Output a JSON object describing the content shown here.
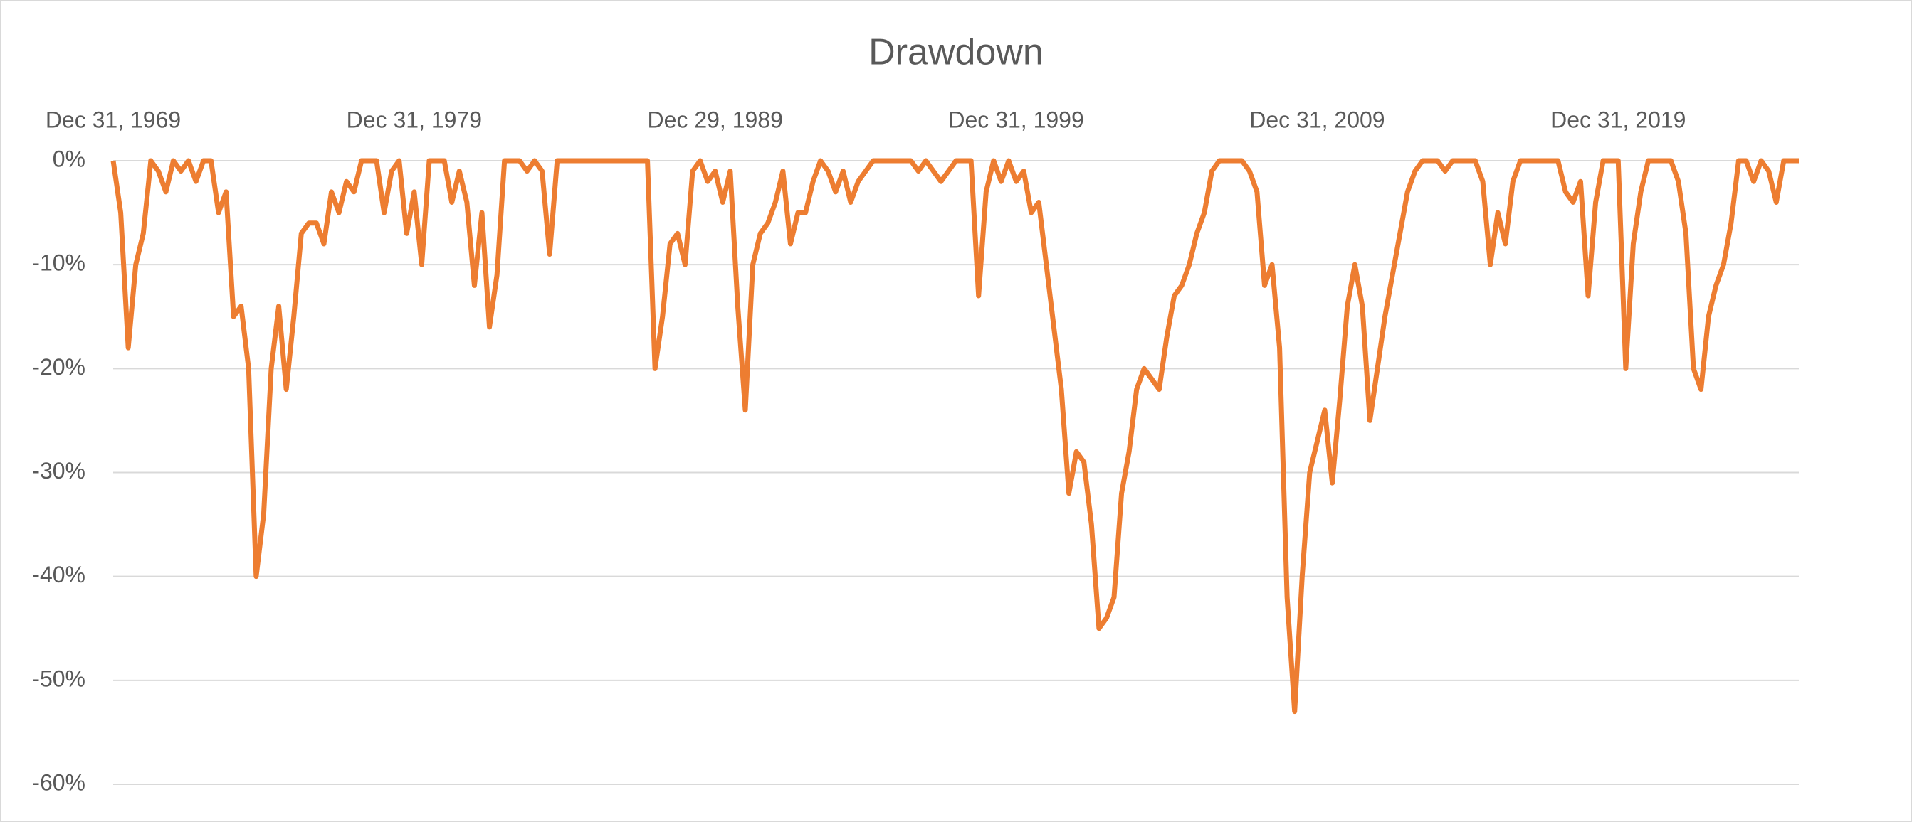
{
  "chart_data": {
    "type": "line",
    "title": "Drawdown",
    "categories": [
      "Dec 31, 1969",
      null,
      null,
      null,
      null,
      null,
      null,
      null,
      null,
      null,
      null,
      null,
      null,
      null,
      null,
      null,
      null,
      null,
      null,
      null,
      null,
      null,
      null,
      null,
      null,
      null,
      null,
      null,
      null,
      null,
      null,
      null,
      null,
      null,
      null,
      null,
      null,
      null,
      null,
      null,
      "Dec 31, 1979",
      null,
      null,
      null,
      null,
      null,
      null,
      null,
      null,
      null,
      null,
      null,
      null,
      null,
      null,
      null,
      null,
      null,
      null,
      null,
      null,
      null,
      null,
      null,
      null,
      null,
      null,
      null,
      null,
      null,
      null,
      null,
      null,
      null,
      null,
      null,
      null,
      null,
      null,
      null,
      "Dec 29, 1989",
      null,
      null,
      null,
      null,
      null,
      null,
      null,
      null,
      null,
      null,
      null,
      null,
      null,
      null,
      null,
      null,
      null,
      null,
      null,
      null,
      null,
      null,
      null,
      null,
      null,
      null,
      null,
      null,
      null,
      null,
      null,
      null,
      null,
      null,
      null,
      null,
      null,
      null,
      null,
      "Dec 31, 1999",
      null,
      null,
      null,
      null,
      null,
      null,
      null,
      null,
      null,
      null,
      null,
      null,
      null,
      null,
      null,
      null,
      null,
      null,
      null,
      null,
      null,
      null,
      null,
      null,
      null,
      null,
      null,
      null,
      null,
      null,
      null,
      null,
      null,
      null,
      null,
      null,
      null,
      null,
      null,
      "Dec 31, 2009",
      null,
      null,
      null,
      null,
      null,
      null,
      null,
      null,
      null,
      null,
      null,
      null,
      null,
      null,
      null,
      null,
      null,
      null,
      null,
      null,
      null,
      null,
      null,
      null,
      null,
      null,
      null,
      null,
      null,
      null,
      null,
      null,
      null,
      null,
      null,
      null,
      null,
      null,
      null,
      "Dec 31, 2019",
      null,
      null,
      null,
      null,
      null,
      null,
      null,
      null,
      null,
      null,
      null,
      null,
      null,
      null,
      null,
      null,
      null,
      null,
      null,
      null,
      null,
      null,
      null,
      null
    ],
    "series": [
      {
        "name": "Drawdown",
        "color": "#ed7d31",
        "values": [
          0,
          -5,
          -18,
          -10,
          -7,
          0,
          -1,
          -3,
          0,
          -1,
          0,
          -2,
          0,
          0,
          -5,
          -3,
          -15,
          -14,
          -20,
          -40,
          -34,
          -20,
          -14,
          -22,
          -15,
          -7,
          -6,
          -6,
          -8,
          -3,
          -5,
          -2,
          -3,
          0,
          0,
          0,
          -5,
          -1,
          0,
          -7,
          -3,
          -10,
          0,
          0,
          0,
          -4,
          -1,
          -4,
          -12,
          -5,
          -16,
          -11,
          0,
          0,
          0,
          -1,
          0,
          -1,
          -9,
          0,
          0,
          0,
          0,
          0,
          0,
          0,
          0,
          0,
          0,
          0,
          0,
          0,
          -20,
          -15,
          -8,
          -7,
          -10,
          -1,
          0,
          -2,
          -1,
          -4,
          -1,
          -14,
          -24,
          -10,
          -7,
          -6,
          -4,
          -1,
          -8,
          -5,
          -5,
          -2,
          0,
          -1,
          -3,
          -1,
          -4,
          -2,
          -1,
          0,
          0,
          0,
          0,
          0,
          0,
          -1,
          0,
          -1,
          -2,
          -1,
          0,
          0,
          0,
          -13,
          -3,
          0,
          -2,
          0,
          -2,
          -1,
          -5,
          -4,
          -10,
          -16,
          -22,
          -32,
          -28,
          -29,
          -35,
          -45,
          -44,
          -42,
          -32,
          -28,
          -22,
          -20,
          -21,
          -22,
          -17,
          -13,
          -12,
          -10,
          -7,
          -5,
          -1,
          0,
          0,
          0,
          0,
          -1,
          -3,
          -12,
          -10,
          -18,
          -42,
          -53,
          -40,
          -30,
          -27,
          -24,
          -31,
          -23,
          -14,
          -10,
          -14,
          -25,
          -20,
          -15,
          -11,
          -7,
          -3,
          -1,
          0,
          0,
          0,
          -1,
          0,
          0,
          0,
          0,
          -2,
          -10,
          -5,
          -8,
          -2,
          0,
          0,
          0,
          0,
          0,
          0,
          -3,
          -4,
          -2,
          -13,
          -4,
          0,
          0,
          0,
          -20,
          -8,
          -3,
          0,
          0,
          0,
          0,
          -2,
          -7,
          -20,
          -22,
          -15,
          -12,
          -10,
          -6,
          0,
          0,
          -2,
          0,
          -1,
          -4,
          0,
          0,
          0
        ]
      }
    ],
    "ylim": [
      -60,
      0
    ],
    "yticks": [
      {
        "value": 0,
        "label": "0%"
      },
      {
        "value": -10,
        "label": "-10%"
      },
      {
        "value": -20,
        "label": "-20%"
      },
      {
        "value": -30,
        "label": "-30%"
      },
      {
        "value": -40,
        "label": "-40%"
      },
      {
        "value": -50,
        "label": "-50%"
      },
      {
        "value": -60,
        "label": "-60%"
      }
    ],
    "grid": true
  }
}
